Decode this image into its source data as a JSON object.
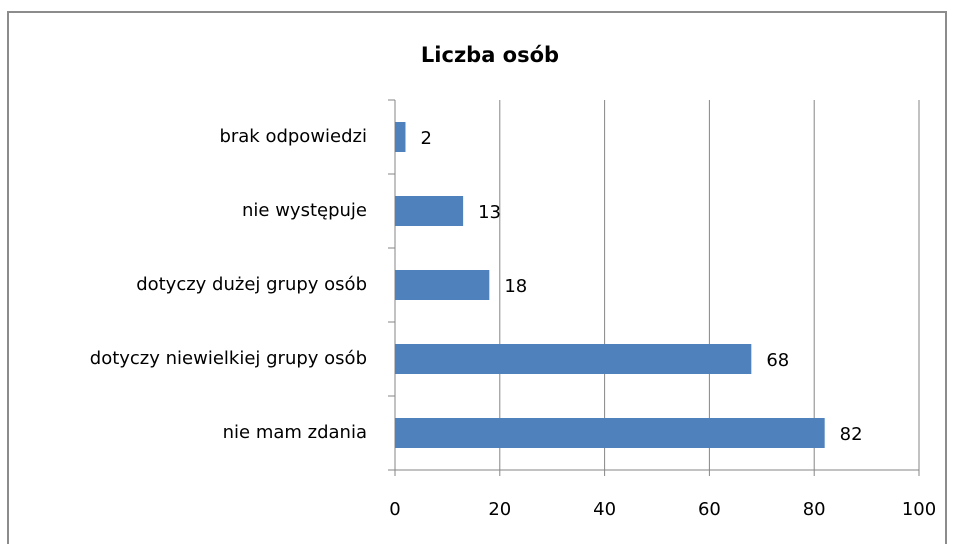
{
  "chart_data": {
    "type": "bar",
    "orientation": "horizontal",
    "title": "Liczba osób",
    "categories": [
      "brak odpowiedzi",
      "nie występuje",
      "dotyczy dużej grupy osób",
      "dotyczy niewielkiej grupy osób",
      "nie mam zdania"
    ],
    "values": [
      2,
      13,
      18,
      68,
      82
    ],
    "color": "#4f81bd",
    "xlim": [
      0,
      100
    ],
    "xticks": [
      0,
      20,
      40,
      60,
      80,
      100
    ],
    "grid": true
  }
}
